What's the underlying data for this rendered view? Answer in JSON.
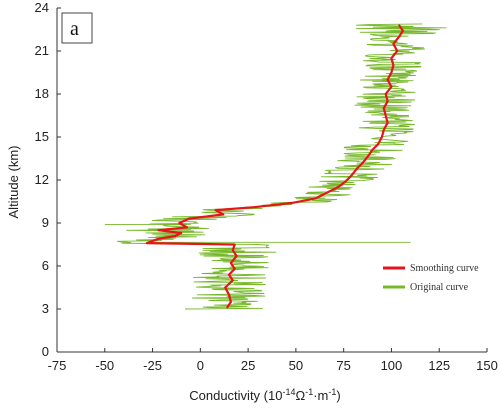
{
  "chart_data": {
    "type": "line",
    "panel_label": "a",
    "xlabel": {
      "main": "Conductivity (10",
      "sup1": "-14",
      "mid": "Ω",
      "sup2": "-1",
      "mid2": "·m",
      "sup3": "-1",
      "end": ")"
    },
    "ylabel": "Altitude (km)",
    "xlim": [
      -75,
      150
    ],
    "ylim": [
      0,
      24
    ],
    "x_ticks": [
      "-75",
      "-50",
      "-25",
      "0",
      "25",
      "50",
      "75",
      "100",
      "125",
      "150"
    ],
    "x_tick_values": [
      -75,
      -50,
      -25,
      0,
      25,
      50,
      75,
      100,
      125,
      150
    ],
    "y_ticks": [
      "0",
      "3",
      "6",
      "9",
      "12",
      "15",
      "18",
      "21",
      "24"
    ],
    "y_tick_values": [
      0,
      3,
      6,
      9,
      12,
      15,
      18,
      21,
      24
    ],
    "legend_position": "right",
    "series": [
      {
        "name": "Smoothing curve",
        "color": "#e8141c",
        "points": [
          [
            14,
            3.1
          ],
          [
            16,
            3.5
          ],
          [
            15,
            4.0
          ],
          [
            13,
            4.5
          ],
          [
            17,
            5.0
          ],
          [
            15,
            5.4
          ],
          [
            18,
            5.8
          ],
          [
            16,
            6.2
          ],
          [
            19,
            6.7
          ],
          [
            17,
            7.1
          ],
          [
            18,
            7.5
          ],
          [
            -28,
            7.6
          ],
          [
            -22,
            7.9
          ],
          [
            -13,
            8.1
          ],
          [
            -10,
            8.3
          ],
          [
            -22,
            8.5
          ],
          [
            -7,
            8.7
          ],
          [
            -11,
            9.0
          ],
          [
            -6,
            9.3
          ],
          [
            12,
            9.6
          ],
          [
            8,
            9.9
          ],
          [
            28,
            10.1
          ],
          [
            48,
            10.4
          ],
          [
            60,
            10.7
          ],
          [
            66,
            11.1
          ],
          [
            72,
            11.5
          ],
          [
            76,
            11.9
          ],
          [
            79,
            12.3
          ],
          [
            82,
            12.8
          ],
          [
            85,
            13.2
          ],
          [
            88,
            13.7
          ],
          [
            90,
            14.1
          ],
          [
            93,
            14.5
          ],
          [
            95,
            15.0
          ],
          [
            96,
            15.5
          ],
          [
            98,
            16.0
          ],
          [
            97,
            16.5
          ],
          [
            96,
            17.0
          ],
          [
            98,
            17.5
          ],
          [
            97,
            18.0
          ],
          [
            100,
            18.5
          ],
          [
            98,
            19.0
          ],
          [
            100,
            19.5
          ],
          [
            101,
            20.0
          ],
          [
            100,
            20.5
          ],
          [
            103,
            21.0
          ],
          [
            101,
            21.5
          ],
          [
            104,
            22.0
          ],
          [
            106,
            22.4
          ],
          [
            104,
            22.8
          ]
        ]
      },
      {
        "name": "Original curve",
        "color": "#77b82b",
        "points": []
      }
    ]
  }
}
